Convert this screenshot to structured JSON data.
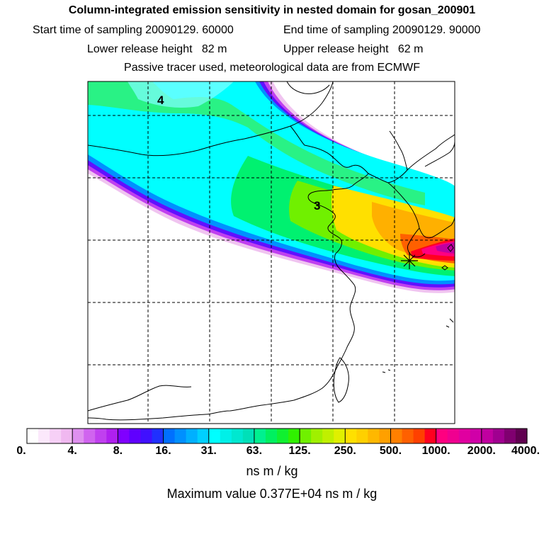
{
  "header": {
    "title": "Column-integrated emission sensitivity in nested domain for gosan_200901",
    "line2_left": "Start time of sampling 20090129. 60000",
    "line2_right": "End time of sampling 20090129. 90000",
    "line3_left": "Lower release height   82 m",
    "line3_right": "Upper release height   62 m",
    "line4": "Passive tracer used, meteorological data are from ECMWF"
  },
  "map": {
    "cluster_labels": [
      "4",
      "3"
    ],
    "receptor_marker": "star"
  },
  "colorbar": {
    "tick_labels": [
      "0.",
      "4.",
      "8.",
      "16.",
      "31.",
      "63.",
      "125.",
      "250.",
      "500.",
      "1000.",
      "2000.",
      "4000."
    ],
    "colors": [
      "#ffffff",
      "#fbe8fb",
      "#f6d0f6",
      "#f0b8f0",
      "#df90ef",
      "#d064ef",
      "#c040ef",
      "#b020ef",
      "#8000ff",
      "#6000ff",
      "#4010ff",
      "#2030ff",
      "#0070ff",
      "#0090ff",
      "#00b0ff",
      "#00d0ff",
      "#00ffff",
      "#00f0e8",
      "#00e8d0",
      "#00e0b8",
      "#00f090",
      "#00f060",
      "#10f030",
      "#30f000",
      "#70f000",
      "#a0f000",
      "#c0f000",
      "#e0f000",
      "#ffe000",
      "#ffd000",
      "#ffb800",
      "#ffa000",
      "#ff8000",
      "#ff6000",
      "#ff4000",
      "#ff0020",
      "#ff0080",
      "#f00090",
      "#e000a0",
      "#d000a8",
      "#c000a0",
      "#a00090",
      "#800070",
      "#600050"
    ]
  },
  "units": "ns m / kg",
  "maximum_text": "Maximum value  0.377E+04 ns m / kg"
}
